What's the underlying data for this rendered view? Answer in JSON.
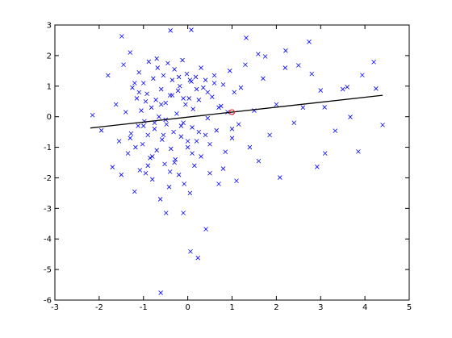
{
  "chart_data": {
    "type": "scatter",
    "xlim": [
      -3,
      5
    ],
    "ylim": [
      -6,
      3
    ],
    "xticks": [
      -3,
      -2,
      -1,
      0,
      1,
      2,
      3,
      4,
      5
    ],
    "yticks": [
      -6,
      -5,
      -4,
      -3,
      -2,
      -1,
      0,
      1,
      2,
      3
    ],
    "series": [
      {
        "color": "#0000ff",
        "marker": "x",
        "x": [
          -1.49,
          -0.39,
          0.08,
          1.32,
          2.74,
          -0.49,
          -0.1,
          0.41,
          0.06,
          0.23,
          -0.61,
          4.4,
          3.85,
          2.92,
          2.08,
          4.2,
          3.94,
          4.25,
          3.6,
          3.09,
          3.67,
          3.33,
          3.0,
          2.5,
          2.21,
          1.59,
          1.75,
          -2.15,
          -1.95,
          -1.8,
          -1.7,
          -1.62,
          -1.55,
          -1.5,
          -1.45,
          -1.4,
          -1.35,
          -1.3,
          -1.28,
          -1.25,
          -1.2,
          -1.18,
          -1.15,
          -1.12,
          -1.1,
          -1.08,
          -1.05,
          -1.02,
          -1.0,
          -0.98,
          -0.95,
          -0.92,
          -0.9,
          -0.88,
          -0.85,
          -0.82,
          -0.8,
          -0.78,
          -0.75,
          -0.72,
          -0.7,
          -0.68,
          -0.65,
          -0.62,
          -0.6,
          -0.58,
          -0.55,
          -0.52,
          -0.5,
          -0.48,
          -0.45,
          -0.42,
          -0.4,
          -0.38,
          -0.35,
          -0.32,
          -0.3,
          -0.28,
          -0.25,
          -0.22,
          -0.2,
          -0.18,
          -0.15,
          -0.12,
          -0.1,
          -0.08,
          -0.05,
          -0.02,
          0.0,
          0.03,
          0.05,
          0.08,
          0.1,
          0.12,
          0.15,
          0.18,
          0.2,
          0.25,
          0.3,
          0.35,
          0.4,
          0.45,
          0.5,
          0.55,
          0.6,
          0.65,
          0.7,
          0.75,
          0.8,
          0.85,
          0.9,
          0.95,
          1.0,
          1.05,
          1.1,
          1.15,
          1.2,
          1.3,
          1.4,
          1.5,
          1.6,
          1.7,
          1.85,
          2.0,
          2.2,
          2.4,
          2.6,
          2.8,
          3.1,
          3.5,
          -1.3,
          -1.1,
          -0.9,
          -0.7,
          -0.5,
          -0.3,
          -0.1,
          0.1,
          0.3,
          0.5,
          0.7,
          -1.2,
          -1.0,
          -0.8,
          -0.6,
          -0.4,
          -0.2,
          0.0,
          0.2,
          0.4,
          0.6,
          0.8,
          1.0,
          -0.95,
          -0.75,
          -0.55,
          -0.35,
          -0.15,
          0.05,
          0.25,
          0.45
        ],
        "y": [
          2.63,
          2.82,
          2.84,
          2.58,
          2.45,
          -3.15,
          -3.15,
          -3.68,
          -4.41,
          -4.62,
          -5.76,
          -0.27,
          -1.14,
          -1.64,
          -1.99,
          1.79,
          1.36,
          0.92,
          0.97,
          0.31,
          -0.01,
          -0.46,
          0.86,
          1.68,
          2.16,
          2.05,
          1.97,
          0.05,
          -0.45,
          1.35,
          -1.65,
          0.4,
          -0.8,
          -1.9,
          1.7,
          0.15,
          -1.2,
          2.1,
          -0.55,
          0.95,
          -2.45,
          -1.0,
          0.6,
          -0.3,
          1.45,
          -1.75,
          0.2,
          -0.9,
          1.1,
          -0.15,
          -1.85,
          0.75,
          -0.6,
          1.8,
          -1.35,
          0.3,
          -2.05,
          1.25,
          -0.4,
          0.55,
          -1.1,
          1.6,
          0.0,
          -2.7,
          0.9,
          -0.75,
          1.35,
          -1.55,
          0.45,
          -0.25,
          1.75,
          -2.3,
          0.7,
          -1.05,
          1.2,
          -0.5,
          1.55,
          -1.4,
          0.1,
          0.85,
          -1.9,
          1.0,
          -0.65,
          1.85,
          -0.2,
          -2.2,
          0.4,
          1.4,
          -1.0,
          0.6,
          -2.5,
          1.15,
          -0.35,
          0.25,
          -1.6,
          1.3,
          -0.8,
          0.55,
          -1.3,
          0.95,
          1.2,
          -0.05,
          -1.85,
          0.65,
          1.35,
          -0.45,
          -2.2,
          0.35,
          1.05,
          -1.15,
          0.15,
          1.5,
          -0.7,
          0.8,
          -2.1,
          -0.25,
          0.95,
          1.7,
          -1.0,
          0.2,
          -1.45,
          1.25,
          -0.6,
          0.4,
          1.6,
          -0.2,
          0.3,
          1.4,
          -1.2,
          0.9,
          -0.7,
          0.8,
          -1.6,
          1.9,
          -0.1,
          -1.5,
          0.6,
          -1.2,
          1.6,
          -0.9,
          0.3,
          1.1,
          -0.3,
          -1.3,
          0.4,
          -1.8,
          1.3,
          -0.8,
          0.9,
          -0.6,
          1.1,
          -1.7,
          -0.4,
          0.5,
          -0.2,
          -0.6,
          0.7,
          -0.3,
          1.2,
          -0.5,
          0.8
        ]
      },
      {
        "color": "#000000",
        "marker": "line",
        "x": [
          -2.2,
          4.4
        ],
        "y": [
          -0.37,
          0.7
        ]
      },
      {
        "color": "#ff0000",
        "marker": "o",
        "x": [
          1.0
        ],
        "y": [
          0.15
        ]
      }
    ]
  }
}
